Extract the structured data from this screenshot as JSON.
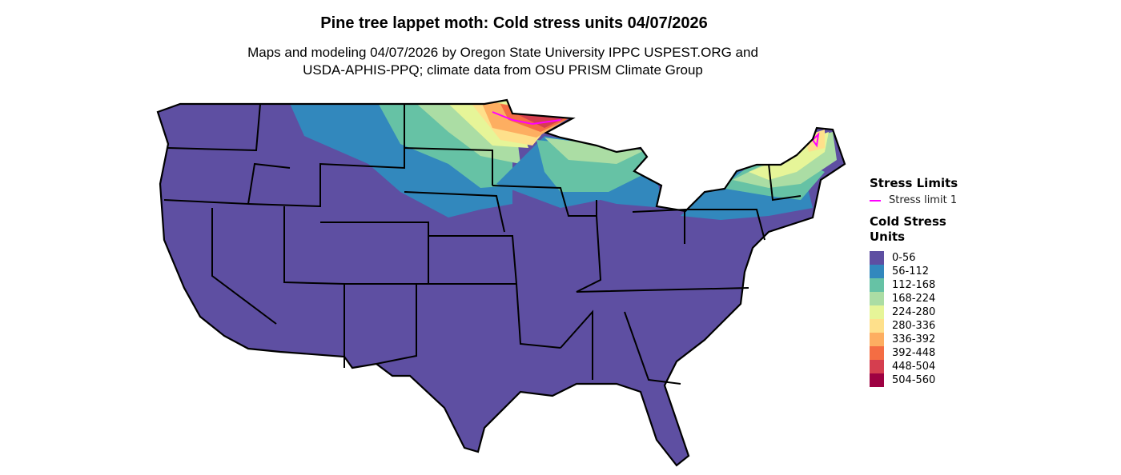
{
  "title": "Pine tree lappet moth: Cold stress units 04/07/2026",
  "subtitle_line1": "Maps and modeling 04/07/2026 by Oregon State University IPPC USPEST.ORG and",
  "subtitle_line2": "USDA-APHIS-PPQ; climate data from OSU PRISM Climate Group",
  "legend": {
    "stress_title": "Stress Limits",
    "stress_items": [
      {
        "label": "Stress limit 1",
        "color": "#FF00FF"
      }
    ],
    "units_title_1": "Cold Stress",
    "units_title_2": "Units",
    "classes": [
      {
        "label": "0-56",
        "color": "#5E4FA2"
      },
      {
        "label": "56-112",
        "color": "#3288BD"
      },
      {
        "label": "112-168",
        "color": "#66C2A5"
      },
      {
        "label": "168-224",
        "color": "#ABDDA4"
      },
      {
        "label": "224-280",
        "color": "#E6F598"
      },
      {
        "label": "280-336",
        "color": "#FEE08B"
      },
      {
        "label": "336-392",
        "color": "#FDAE61"
      },
      {
        "label": "392-448",
        "color": "#F46D43"
      },
      {
        "label": "448-504",
        "color": "#D53E4F"
      },
      {
        "label": "504-560",
        "color": "#9E0142"
      }
    ]
  }
}
